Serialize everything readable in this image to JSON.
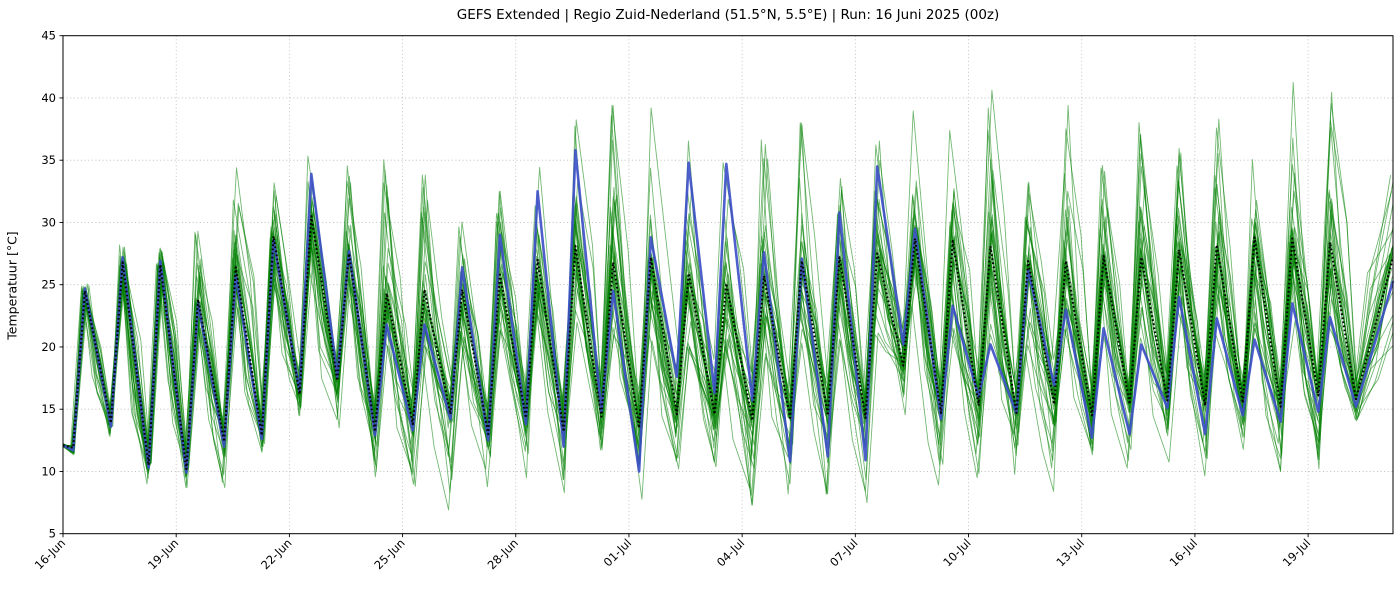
{
  "window": {
    "title": "GEFS Extended | Regio Zuid-Nederland (51.5°N, 5.5°E) | Run: 16 Juni 2025 (00z)"
  },
  "chart_data": {
    "type": "line",
    "subtype": "ensemble-plume",
    "title": "GEFS Extended | Regio Zuid-Nederland (51.5°N, 5.5°E) | Run: 16 Juni 2025 (00z)",
    "xlabel": "",
    "ylabel": "Temperatuur [°C]",
    "ylim": [
      5,
      45
    ],
    "yticks": [
      5,
      10,
      15,
      20,
      25,
      30,
      35,
      40,
      45
    ],
    "xticks": [
      {
        "day": 0,
        "label": "16-Jun"
      },
      {
        "day": 3,
        "label": "19-Jun"
      },
      {
        "day": 6,
        "label": "22-Jun"
      },
      {
        "day": 9,
        "label": "25-Jun"
      },
      {
        "day": 12,
        "label": "28-Jun"
      },
      {
        "day": 15,
        "label": "01-Jul"
      },
      {
        "day": 18,
        "label": "04-Jul"
      },
      {
        "day": 21,
        "label": "07-Jul"
      },
      {
        "day": 24,
        "label": "10-Jul"
      },
      {
        "day": 27,
        "label": "13-Jul"
      },
      {
        "day": 30,
        "label": "16-Jul"
      },
      {
        "day": 33,
        "label": "19-Jul"
      }
    ],
    "x_range_days": [
      0,
      35.25
    ],
    "grid": {
      "on": true,
      "style": "dotted",
      "color": "#b5b5b5"
    },
    "legend_position": "none",
    "n_members": 30,
    "colors": {
      "member": "#008000",
      "control": "#3b4ec8",
      "mean": "#000000",
      "axes": "#000000"
    },
    "start_point": {
      "t": 0.0,
      "value": 12.1
    },
    "series_notes": {
      "members": "30 green perturbed ensemble members spanning envelope top..bot",
      "mean": "black dotted ensemble mean",
      "control": "thick blue operational/control run"
    },
    "daily_minima": [
      [
        0.27,
        11.9,
        11.7,
        12.3,
        11.0
      ],
      [
        1.27,
        13.9,
        13.6,
        14.8,
        12.8
      ],
      [
        2.27,
        10.5,
        10.3,
        11.5,
        9.0
      ],
      [
        3.27,
        10.2,
        9.9,
        11.5,
        8.7
      ],
      [
        4.27,
        12.4,
        12.0,
        14.0,
        8.7
      ],
      [
        5.27,
        12.9,
        12.6,
        15.0,
        10.8
      ],
      [
        6.27,
        16.2,
        16.4,
        18.5,
        13.2
      ],
      [
        7.27,
        17.3,
        17.6,
        19.5,
        13.5
      ],
      [
        8.27,
        13.2,
        12.9,
        16.0,
        9.3
      ],
      [
        9.27,
        13.8,
        13.3,
        16.5,
        7.5
      ],
      [
        10.27,
        14.6,
        14.2,
        17.5,
        6.9
      ],
      [
        11.27,
        13.0,
        12.5,
        16.0,
        8.2
      ],
      [
        12.27,
        14.3,
        13.8,
        17.0,
        9.5
      ],
      [
        13.27,
        13.2,
        12.0,
        16.5,
        8.3
      ],
      [
        14.27,
        14.4,
        14.8,
        17.5,
        9.7
      ],
      [
        15.27,
        13.5,
        10.0,
        16.0,
        7.3
      ],
      [
        16.27,
        14.6,
        17.6,
        19.5,
        10.2
      ],
      [
        17.27,
        14.6,
        16.3,
        19.0,
        8.2
      ],
      [
        18.27,
        14.1,
        15.7,
        18.0,
        7.3
      ],
      [
        19.27,
        14.3,
        10.8,
        17.0,
        8.2
      ],
      [
        20.27,
        14.5,
        11.2,
        17.5,
        8.2
      ],
      [
        21.27,
        14.3,
        10.9,
        17.0,
        7.5
      ],
      [
        22.27,
        18.5,
        20.2,
        21.5,
        12.5
      ],
      [
        23.27,
        14.7,
        14.2,
        18.0,
        8.9
      ],
      [
        24.27,
        15.3,
        16.0,
        18.5,
        9.5
      ],
      [
        25.27,
        14.7,
        14.7,
        17.5,
        8.9
      ],
      [
        26.27,
        15.4,
        16.9,
        19.0,
        8.4
      ],
      [
        27.27,
        14.5,
        12.7,
        16.5,
        8.6
      ],
      [
        28.27,
        15.4,
        13.0,
        17.0,
        10.0
      ],
      [
        29.27,
        15.7,
        15.1,
        18.0,
        9.9
      ],
      [
        30.27,
        15.3,
        13.0,
        17.5,
        7.0
      ],
      [
        31.27,
        15.5,
        14.5,
        17.5,
        10.0
      ],
      [
        32.27,
        15.2,
        14.0,
        17.0,
        10.0
      ],
      [
        33.27,
        16.1,
        14.8,
        17.5,
        9.8
      ],
      [
        34.27,
        15.8,
        15.2,
        17.5,
        12.0
      ]
    ],
    "daily_maxima": [
      [
        0.58,
        24.5,
        24.7,
        25.3,
        23.9
      ],
      [
        1.58,
        26.8,
        27.2,
        28.2,
        25.6
      ],
      [
        2.58,
        26.6,
        26.9,
        28.4,
        25.2
      ],
      [
        3.58,
        23.8,
        23.5,
        29.5,
        21.5
      ],
      [
        4.58,
        26.4,
        25.8,
        34.4,
        22.5
      ],
      [
        5.58,
        28.9,
        28.6,
        33.5,
        25.0
      ],
      [
        6.58,
        30.5,
        33.9,
        36.2,
        26.0
      ],
      [
        7.58,
        27.5,
        27.7,
        35.4,
        23.5
      ],
      [
        8.58,
        24.3,
        21.8,
        37.0,
        20.0
      ],
      [
        9.58,
        24.6,
        21.8,
        33.8,
        19.5
      ],
      [
        10.58,
        24.6,
        26.4,
        32.3,
        20.0
      ],
      [
        11.58,
        25.8,
        29.0,
        36.3,
        20.5
      ],
      [
        12.58,
        27.0,
        32.5,
        36.6,
        21.5
      ],
      [
        13.58,
        28.1,
        35.8,
        38.5,
        22.0
      ],
      [
        14.58,
        26.8,
        24.5,
        39.4,
        21.0
      ],
      [
        15.58,
        27.2,
        28.8,
        39.2,
        20.5
      ],
      [
        16.58,
        25.9,
        34.8,
        38.9,
        20.0
      ],
      [
        17.58,
        25.1,
        34.7,
        34.8,
        19.5
      ],
      [
        18.58,
        25.7,
        27.6,
        38.3,
        19.0
      ],
      [
        19.58,
        26.9,
        27.1,
        38.0,
        20.0
      ],
      [
        20.58,
        27.2,
        30.8,
        37.0,
        20.5
      ],
      [
        21.58,
        27.5,
        34.5,
        36.6,
        21.0
      ],
      [
        22.58,
        28.7,
        29.5,
        39.8,
        22.0
      ],
      [
        23.58,
        28.5,
        23.3,
        39.1,
        21.5
      ],
      [
        24.58,
        28.1,
        20.2,
        40.8,
        21.0
      ],
      [
        25.58,
        26.9,
        26.2,
        35.5,
        19.5
      ],
      [
        26.58,
        26.9,
        23.0,
        43.1,
        20.0
      ],
      [
        27.58,
        27.3,
        21.5,
        37.8,
        20.5
      ],
      [
        28.58,
        27.2,
        20.2,
        40.4,
        20.0
      ],
      [
        29.58,
        27.8,
        24.0,
        36.2,
        20.5
      ],
      [
        30.58,
        28.2,
        22.3,
        38.3,
        21.0
      ],
      [
        31.58,
        28.8,
        20.6,
        36.0,
        21.5
      ],
      [
        32.58,
        28.7,
        23.5,
        42.1,
        21.0
      ],
      [
        33.58,
        28.4,
        22.4,
        42.8,
        20.5
      ],
      [
        35.25,
        27.2,
        25.3,
        33.8,
        19.5
      ]
    ],
    "knot_format": [
      "t_days_since_run",
      "ensemble_mean",
      "control_blue",
      "envelope_top",
      "envelope_bottom"
    ]
  }
}
